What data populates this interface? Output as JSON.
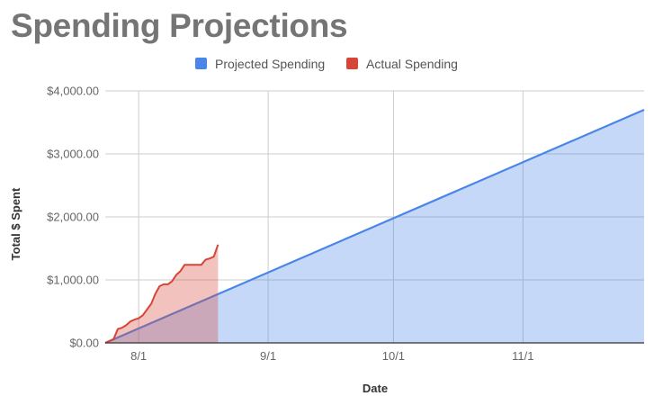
{
  "chart_data": {
    "type": "area",
    "title": "Spending Projections",
    "xlabel": "Date",
    "ylabel": "Total $ Spent",
    "ylim": [
      0,
      4000
    ],
    "xlim": [
      "2018-07-24",
      "2018-11-30"
    ],
    "y_ticks": [
      "$0.00",
      "$1,000.00",
      "$2,000.00",
      "$3,000.00",
      "$4,000.00"
    ],
    "x_ticks": [
      {
        "date": "2018-08-01",
        "label": "8/1"
      },
      {
        "date": "2018-09-01",
        "label": "9/1"
      },
      {
        "date": "2018-10-01",
        "label": "10/1"
      },
      {
        "date": "2018-11-01",
        "label": "11/1"
      }
    ],
    "grid": true,
    "legend_position": "top",
    "series": [
      {
        "name": "Projected Spending",
        "color": "#4a86e8",
        "points": [
          {
            "x": "2018-07-24",
            "y": 0
          },
          {
            "x": "2018-11-30",
            "y": 3700
          }
        ]
      },
      {
        "name": "Actual Spending",
        "color": "#d64535",
        "points": [
          {
            "x": "2018-07-24",
            "y": 0
          },
          {
            "x": "2018-07-25",
            "y": 30
          },
          {
            "x": "2018-07-26",
            "y": 60
          },
          {
            "x": "2018-07-27",
            "y": 220
          },
          {
            "x": "2018-07-28",
            "y": 240
          },
          {
            "x": "2018-07-29",
            "y": 280
          },
          {
            "x": "2018-07-30",
            "y": 340
          },
          {
            "x": "2018-07-31",
            "y": 370
          },
          {
            "x": "2018-08-01",
            "y": 390
          },
          {
            "x": "2018-08-02",
            "y": 440
          },
          {
            "x": "2018-08-03",
            "y": 530
          },
          {
            "x": "2018-08-04",
            "y": 620
          },
          {
            "x": "2018-08-05",
            "y": 780
          },
          {
            "x": "2018-08-06",
            "y": 900
          },
          {
            "x": "2018-08-07",
            "y": 930
          },
          {
            "x": "2018-08-08",
            "y": 930
          },
          {
            "x": "2018-08-09",
            "y": 980
          },
          {
            "x": "2018-08-10",
            "y": 1080
          },
          {
            "x": "2018-08-11",
            "y": 1140
          },
          {
            "x": "2018-08-12",
            "y": 1240
          },
          {
            "x": "2018-08-13",
            "y": 1240
          },
          {
            "x": "2018-08-14",
            "y": 1240
          },
          {
            "x": "2018-08-15",
            "y": 1240
          },
          {
            "x": "2018-08-16",
            "y": 1240
          },
          {
            "x": "2018-08-17",
            "y": 1320
          },
          {
            "x": "2018-08-18",
            "y": 1340
          },
          {
            "x": "2018-08-19",
            "y": 1370
          },
          {
            "x": "2018-08-20",
            "y": 1560
          }
        ]
      }
    ]
  }
}
